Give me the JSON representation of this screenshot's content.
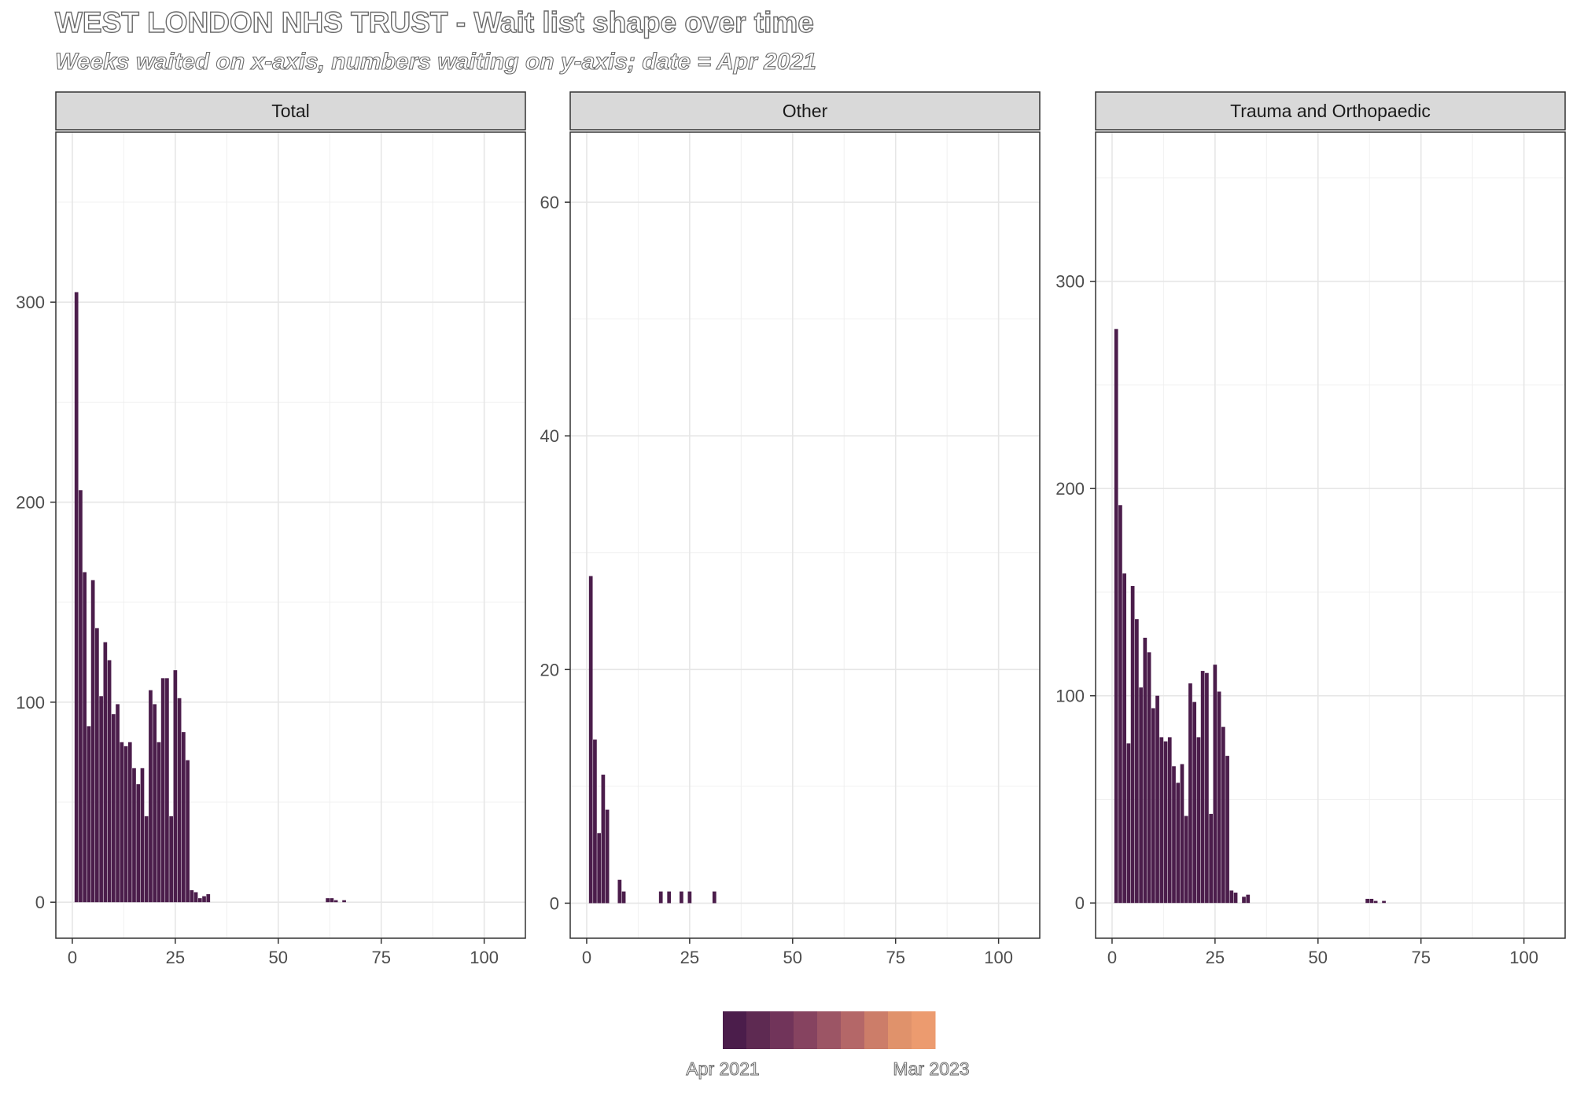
{
  "title": "WEST LONDON NHS TRUST - Wait list shape over time",
  "subtitle": "Weeks waited on x-axis, numbers waiting on y-axis; date = Apr 2021",
  "chart_data": [
    {
      "type": "bar",
      "panel": "Total",
      "xlim": [
        -4,
        110
      ],
      "ylim": [
        -18,
        385
      ],
      "x_ticks": [
        0,
        25,
        50,
        75,
        100
      ],
      "y_ticks": [
        0,
        100,
        200,
        300
      ],
      "x": [
        1,
        2,
        3,
        4,
        5,
        6,
        7,
        8,
        9,
        10,
        11,
        12,
        13,
        14,
        15,
        16,
        17,
        18,
        19,
        20,
        21,
        22,
        23,
        24,
        25,
        26,
        27,
        28,
        29,
        30,
        31,
        32,
        33,
        62,
        63,
        64,
        66
      ],
      "y": [
        305,
        206,
        165,
        88,
        161,
        137,
        103,
        130,
        121,
        94,
        99,
        80,
        78,
        80,
        67,
        59,
        67,
        43,
        106,
        99,
        80,
        112,
        112,
        43,
        116,
        102,
        85,
        71,
        6,
        5,
        2,
        3,
        4,
        2,
        2,
        1,
        1
      ],
      "color": "#4b1d4b",
      "grid": true
    },
    {
      "type": "bar",
      "panel": "Other",
      "xlim": [
        -4,
        110
      ],
      "ylim": [
        -3,
        66
      ],
      "x_ticks": [
        0,
        25,
        50,
        75,
        100
      ],
      "y_ticks": [
        0,
        20,
        40,
        60
      ],
      "x": [
        1,
        2,
        3,
        4,
        5,
        8,
        9,
        18,
        20,
        23,
        25,
        31
      ],
      "y": [
        28,
        14,
        6,
        11,
        8,
        2,
        1,
        1,
        1,
        1,
        1,
        1
      ],
      "color": "#4b1d4b",
      "grid": true
    },
    {
      "type": "bar",
      "panel": "Trauma and Orthopaedic",
      "xlim": [
        -4,
        110
      ],
      "ylim": [
        -17,
        372
      ],
      "x_ticks": [
        0,
        25,
        50,
        75,
        100
      ],
      "y_ticks": [
        0,
        100,
        200,
        300
      ],
      "x": [
        1,
        2,
        3,
        4,
        5,
        6,
        7,
        8,
        9,
        10,
        11,
        12,
        13,
        14,
        15,
        16,
        17,
        18,
        19,
        20,
        21,
        22,
        23,
        24,
        25,
        26,
        27,
        28,
        29,
        30,
        31,
        32,
        33,
        62,
        63,
        64,
        66
      ],
      "y": [
        277,
        192,
        159,
        77,
        153,
        137,
        104,
        128,
        121,
        94,
        100,
        80,
        78,
        80,
        66,
        58,
        67,
        42,
        106,
        97,
        80,
        112,
        111,
        43,
        115,
        102,
        85,
        71,
        6,
        5,
        0,
        3,
        4,
        2,
        2,
        1,
        1
      ],
      "color": "#4b1d4b",
      "grid": true
    }
  ],
  "legend": {
    "colors": [
      "#4b1d4b",
      "#5e2a52",
      "#71345a",
      "#864360",
      "#9c5565",
      "#b46768",
      "#cc7d69",
      "#e0926b",
      "#ec9b6f"
    ],
    "start_label": "Apr 2021",
    "end_label": "Mar 2023",
    "placement": "bottom"
  }
}
